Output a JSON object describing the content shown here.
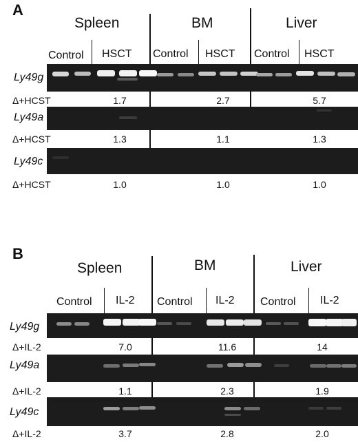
{
  "panels": [
    {
      "letter": "A",
      "tissues": [
        "Spleen",
        "BM",
        "Liver"
      ],
      "groups": [
        "Control",
        "HSCT",
        "Control",
        "HSCT",
        "Control",
        "HSCT"
      ],
      "genes": [
        {
          "name": "Ly49g",
          "ratio_label": "Δ+HCST",
          "ratios": [
            "1.7",
            "2.7",
            "5.7"
          ]
        },
        {
          "name": "Ly49a",
          "ratio_label": "Δ+HCST",
          "ratios": [
            "1.3",
            "1.1",
            "1.3"
          ]
        },
        {
          "name": "Ly49c",
          "ratio_label": "Δ+HCST",
          "ratios": [
            "1.0",
            "1.0",
            "1.0"
          ]
        }
      ]
    },
    {
      "letter": "B",
      "tissues": [
        "Spleen",
        "BM",
        "Liver"
      ],
      "groups": [
        "Control",
        "IL-2",
        "Control",
        "IL-2",
        "Control",
        "IL-2"
      ],
      "genes": [
        {
          "name": "Ly49g",
          "ratio_label": "Δ+IL-2",
          "ratios": [
            "7.0",
            "11.6",
            "14"
          ]
        },
        {
          "name": "Ly49a",
          "ratio_label": "Δ+IL-2",
          "ratios": [
            "1.1",
            "2.3",
            "1.9"
          ]
        },
        {
          "name": "Ly49c",
          "ratio_label": "Δ+IL-2",
          "ratios": [
            "3.7",
            "2.8",
            "2.0"
          ]
        }
      ]
    }
  ],
  "colors": {
    "gel_background": "#1c1c1c",
    "band": "#f2f2f2"
  }
}
